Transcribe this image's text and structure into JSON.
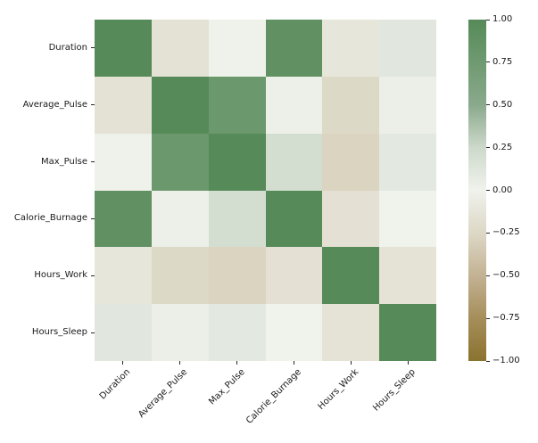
{
  "figure": {
    "background_color": "#ffffff",
    "text_color": "#1a1a1a",
    "tick_color": "#262626"
  },
  "chart_data": {
    "type": "heatmap",
    "title": "",
    "xlabel": "",
    "ylabel": "",
    "categories": [
      "Duration",
      "Average_Pulse",
      "Max_Pulse",
      "Calorie_Burnage",
      "Hours_Work",
      "Hours_Sleep"
    ],
    "matrix": [
      [
        1.0,
        -0.155,
        0.004,
        0.89,
        -0.114,
        0.107
      ],
      [
        -0.155,
        1.0,
        0.787,
        0.025,
        -0.244,
        0.027
      ],
      [
        0.004,
        0.787,
        1.0,
        0.204,
        -0.274,
        0.093
      ],
      [
        0.89,
        0.025,
        0.204,
        1.0,
        -0.16,
        0.0
      ],
      [
        -0.114,
        -0.244,
        -0.274,
        -0.16,
        1.0,
        -0.144
      ],
      [
        0.107,
        0.027,
        0.093,
        0.0,
        -0.144,
        1.0
      ]
    ],
    "vmin": -1,
    "vmax": 1,
    "grid": false,
    "legend_position": "colorbar-right",
    "colorbar_tick_labels": [
      "1.00",
      "0.75",
      "0.50",
      "0.25",
      "0.00",
      "−0.25",
      "−0.50",
      "−0.75",
      "−1.00"
    ],
    "colorbar_tick_values": [
      1,
      0.75,
      0.5,
      0.25,
      0,
      -0.25,
      -0.5,
      -0.75,
      -1
    ],
    "colormap_stops": [
      [
        -1.0,
        "#8a722f"
      ],
      [
        -0.75,
        "#a68e5b"
      ],
      [
        -0.5,
        "#c3b293"
      ],
      [
        -0.25,
        "#ddd8c6"
      ],
      [
        0.0,
        "#f0f2ec"
      ],
      [
        0.25,
        "#cdd9cb"
      ],
      [
        0.5,
        "#8aa98c"
      ],
      [
        0.75,
        "#6f9a71"
      ],
      [
        1.0,
        "#568a58"
      ]
    ]
  }
}
